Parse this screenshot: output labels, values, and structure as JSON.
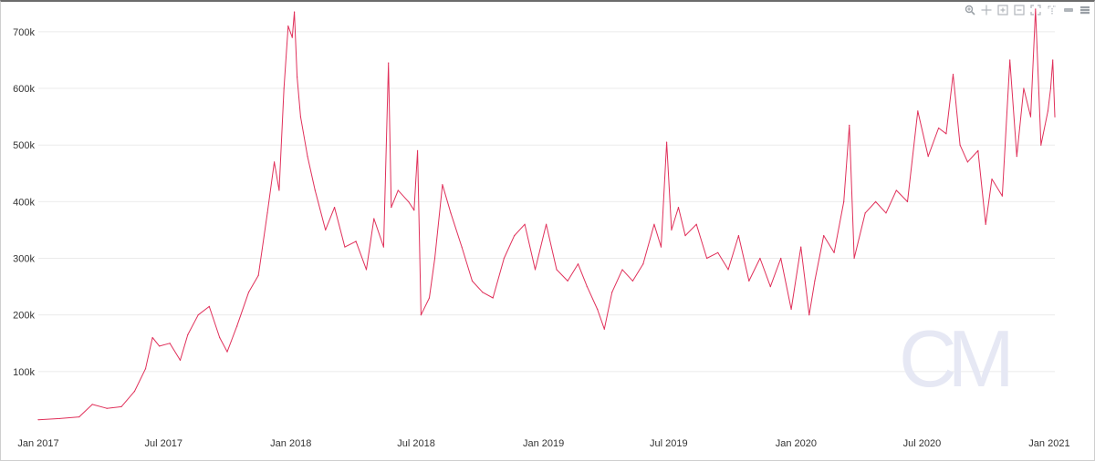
{
  "toolbar": {
    "buttons": [
      {
        "name": "zoom-in-icon"
      },
      {
        "name": "pan-icon"
      },
      {
        "name": "zoom-box-icon"
      },
      {
        "name": "zoom-out-box-icon"
      },
      {
        "name": "reset-zoom-icon"
      },
      {
        "name": "select-icon"
      },
      {
        "name": "minimize-icon"
      },
      {
        "name": "menu-icon"
      }
    ]
  },
  "watermark": {
    "text": "CM"
  },
  "colors": {
    "line": "#e0305a",
    "grid": "#ebebeb",
    "watermark": "#e6e8f4"
  },
  "chart_data": {
    "type": "line",
    "title": "",
    "xlabel": "",
    "ylabel": "",
    "x_start": "2017-01-01",
    "x_end": "2021-01-09",
    "ylim": [
      0,
      740000
    ],
    "grid": true,
    "y_ticks": [
      {
        "value": 100000,
        "label": "100k"
      },
      {
        "value": 200000,
        "label": "200k"
      },
      {
        "value": 300000,
        "label": "300k"
      },
      {
        "value": 400000,
        "label": "400k"
      },
      {
        "value": 500000,
        "label": "500k"
      },
      {
        "value": 600000,
        "label": "600k"
      },
      {
        "value": 700000,
        "label": "700k"
      }
    ],
    "x_ticks": [
      {
        "date": "2017-01-01",
        "label": "Jan 2017"
      },
      {
        "date": "2017-07-01",
        "label": "Jul 2017"
      },
      {
        "date": "2018-01-01",
        "label": "Jan 2018"
      },
      {
        "date": "2018-07-01",
        "label": "Jul 2018"
      },
      {
        "date": "2019-01-01",
        "label": "Jan 2019"
      },
      {
        "date": "2019-07-01",
        "label": "Jul 2019"
      },
      {
        "date": "2020-01-01",
        "label": "Jan 2020"
      },
      {
        "date": "2020-07-01",
        "label": "Jul 2020"
      },
      {
        "date": "2021-01-01",
        "label": "Jan 2021"
      }
    ],
    "series": [
      {
        "points": [
          [
            "2017-01-01",
            15000
          ],
          [
            "2017-02-01",
            17000
          ],
          [
            "2017-03-01",
            20000
          ],
          [
            "2017-03-20",
            42000
          ],
          [
            "2017-04-10",
            35000
          ],
          [
            "2017-05-01",
            38000
          ],
          [
            "2017-05-20",
            65000
          ],
          [
            "2017-06-05",
            105000
          ],
          [
            "2017-06-15",
            160000
          ],
          [
            "2017-06-25",
            145000
          ],
          [
            "2017-07-10",
            150000
          ],
          [
            "2017-07-25",
            120000
          ],
          [
            "2017-08-05",
            165000
          ],
          [
            "2017-08-20",
            200000
          ],
          [
            "2017-09-05",
            215000
          ],
          [
            "2017-09-20",
            160000
          ],
          [
            "2017-10-01",
            135000
          ],
          [
            "2017-10-15",
            180000
          ],
          [
            "2017-11-01",
            240000
          ],
          [
            "2017-11-15",
            270000
          ],
          [
            "2017-11-28",
            380000
          ],
          [
            "2017-12-08",
            470000
          ],
          [
            "2017-12-15",
            420000
          ],
          [
            "2017-12-22",
            600000
          ],
          [
            "2017-12-28",
            710000
          ],
          [
            "2018-01-03",
            690000
          ],
          [
            "2018-01-06",
            735000
          ],
          [
            "2018-01-10",
            620000
          ],
          [
            "2018-01-15",
            550000
          ],
          [
            "2018-01-25",
            480000
          ],
          [
            "2018-02-05",
            420000
          ],
          [
            "2018-02-20",
            350000
          ],
          [
            "2018-03-05",
            390000
          ],
          [
            "2018-03-20",
            320000
          ],
          [
            "2018-04-05",
            330000
          ],
          [
            "2018-04-20",
            280000
          ],
          [
            "2018-05-01",
            370000
          ],
          [
            "2018-05-15",
            320000
          ],
          [
            "2018-05-22",
            645000
          ],
          [
            "2018-05-26",
            390000
          ],
          [
            "2018-06-05",
            420000
          ],
          [
            "2018-06-20",
            400000
          ],
          [
            "2018-06-28",
            385000
          ],
          [
            "2018-07-03",
            490000
          ],
          [
            "2018-07-08",
            200000
          ],
          [
            "2018-07-20",
            230000
          ],
          [
            "2018-07-28",
            300000
          ],
          [
            "2018-08-08",
            430000
          ],
          [
            "2018-08-20",
            380000
          ],
          [
            "2018-09-05",
            320000
          ],
          [
            "2018-09-20",
            260000
          ],
          [
            "2018-10-05",
            240000
          ],
          [
            "2018-10-20",
            230000
          ],
          [
            "2018-11-05",
            300000
          ],
          [
            "2018-11-20",
            340000
          ],
          [
            "2018-12-05",
            360000
          ],
          [
            "2018-12-20",
            280000
          ],
          [
            "2019-01-05",
            360000
          ],
          [
            "2019-01-20",
            280000
          ],
          [
            "2019-02-05",
            260000
          ],
          [
            "2019-02-20",
            290000
          ],
          [
            "2019-03-05",
            250000
          ],
          [
            "2019-03-20",
            210000
          ],
          [
            "2019-03-30",
            175000
          ],
          [
            "2019-04-10",
            240000
          ],
          [
            "2019-04-25",
            280000
          ],
          [
            "2019-05-10",
            260000
          ],
          [
            "2019-05-25",
            290000
          ],
          [
            "2019-06-10",
            360000
          ],
          [
            "2019-06-20",
            320000
          ],
          [
            "2019-06-28",
            505000
          ],
          [
            "2019-07-05",
            350000
          ],
          [
            "2019-07-15",
            390000
          ],
          [
            "2019-07-25",
            340000
          ],
          [
            "2019-08-10",
            360000
          ],
          [
            "2019-08-25",
            300000
          ],
          [
            "2019-09-10",
            310000
          ],
          [
            "2019-09-25",
            280000
          ],
          [
            "2019-10-10",
            340000
          ],
          [
            "2019-10-25",
            260000
          ],
          [
            "2019-11-10",
            300000
          ],
          [
            "2019-11-25",
            250000
          ],
          [
            "2019-12-10",
            300000
          ],
          [
            "2019-12-25",
            210000
          ],
          [
            "2020-01-08",
            320000
          ],
          [
            "2020-01-20",
            200000
          ],
          [
            "2020-01-28",
            260000
          ],
          [
            "2020-02-10",
            340000
          ],
          [
            "2020-02-25",
            310000
          ],
          [
            "2020-03-10",
            400000
          ],
          [
            "2020-03-18",
            535000
          ],
          [
            "2020-03-25",
            300000
          ],
          [
            "2020-04-10",
            380000
          ],
          [
            "2020-04-25",
            400000
          ],
          [
            "2020-05-10",
            380000
          ],
          [
            "2020-05-25",
            420000
          ],
          [
            "2020-06-10",
            400000
          ],
          [
            "2020-06-25",
            560000
          ],
          [
            "2020-07-10",
            480000
          ],
          [
            "2020-07-25",
            530000
          ],
          [
            "2020-08-05",
            520000
          ],
          [
            "2020-08-15",
            625000
          ],
          [
            "2020-08-25",
            500000
          ],
          [
            "2020-09-05",
            470000
          ],
          [
            "2020-09-20",
            490000
          ],
          [
            "2020-10-01",
            360000
          ],
          [
            "2020-10-10",
            440000
          ],
          [
            "2020-10-25",
            410000
          ],
          [
            "2020-11-05",
            650000
          ],
          [
            "2020-11-15",
            480000
          ],
          [
            "2020-11-25",
            600000
          ],
          [
            "2020-12-05",
            550000
          ],
          [
            "2020-12-12",
            740000
          ],
          [
            "2020-12-20",
            500000
          ],
          [
            "2020-12-30",
            560000
          ],
          [
            "2021-01-03",
            600000
          ],
          [
            "2021-01-06",
            650000
          ],
          [
            "2021-01-09",
            550000
          ]
        ]
      }
    ]
  }
}
